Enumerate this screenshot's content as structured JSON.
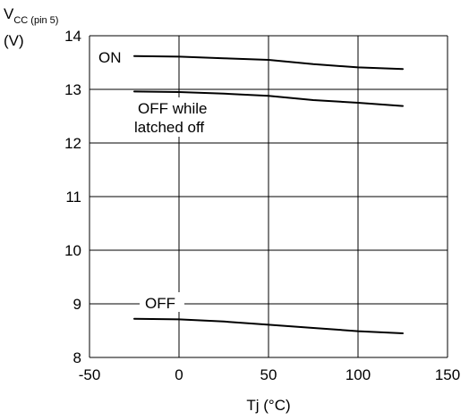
{
  "chart_data": {
    "type": "line",
    "ylabel_main": "V",
    "ylabel_sub": "CC (pin 5)",
    "ylabel_unit": "(V)",
    "xlabel": "Tj  (°C)",
    "xlim": [
      -50,
      150
    ],
    "ylim": [
      8,
      14
    ],
    "x_ticks": [
      "-50",
      "0",
      "50",
      "100",
      "150"
    ],
    "y_ticks": [
      "8",
      "9",
      "10",
      "11",
      "12",
      "13",
      "14"
    ],
    "grid": true,
    "series": [
      {
        "name": "ON",
        "x": [
          -25,
          0,
          25,
          50,
          75,
          100,
          125
        ],
        "y": [
          13.62,
          13.61,
          13.58,
          13.55,
          13.47,
          13.41,
          13.38
        ]
      },
      {
        "name": "OFF while latched off",
        "x": [
          -25,
          0,
          25,
          50,
          75,
          100,
          125
        ],
        "y": [
          12.96,
          12.95,
          12.92,
          12.88,
          12.8,
          12.75,
          12.69
        ]
      },
      {
        "name": "OFF",
        "x": [
          -25,
          0,
          25,
          50,
          75,
          100,
          125
        ],
        "y": [
          8.72,
          8.71,
          8.67,
          8.61,
          8.55,
          8.49,
          8.45
        ]
      }
    ],
    "annotations": {
      "on": "ON",
      "off_latched_line1": "OFF while",
      "off_latched_line2": "latched off",
      "off": "OFF"
    }
  }
}
